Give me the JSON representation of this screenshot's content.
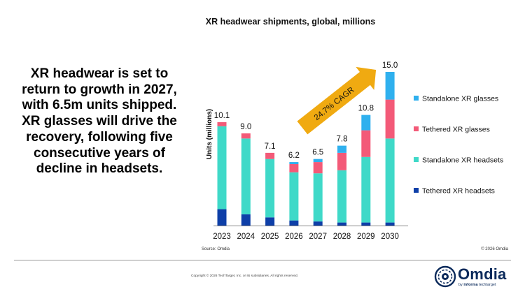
{
  "headline": "XR headwear is set to return to growth in 2027, with 6.5m units shipped. XR glasses will drive the recovery, following five consecutive years of decline in headsets.",
  "source": "Source: Omdia",
  "chart_copyright": "© 2026 Omdia",
  "footer_copyright": "Copyright © 2026 TechTarget, Inc. or its subsidiaries. All rights reserved.",
  "logo": {
    "brand": "Omdia",
    "by": "by",
    "parent_bold": "informa",
    "parent_rest": " techtarget"
  },
  "chart_data": {
    "type": "bar",
    "stacked": true,
    "title": "XR headwear shipments, global, millions",
    "ylabel": "Units (millions)",
    "xlabel": "",
    "ylim": [
      0,
      15
    ],
    "grid": false,
    "legend_position": "right",
    "categories": [
      "2023",
      "2024",
      "2025",
      "2026",
      "2027",
      "2028",
      "2029",
      "2030"
    ],
    "totals_labels": [
      "10.1",
      "9.0",
      "7.1",
      "6.2",
      "6.5",
      "7.8",
      "10.8",
      "15.0"
    ],
    "series": [
      {
        "name": "Tethered XR headsets",
        "color": "#0e3fa8",
        "values": [
          1.6,
          1.1,
          0.8,
          0.5,
          0.4,
          0.3,
          0.3,
          0.3
        ]
      },
      {
        "name": "Standalone XR headsets",
        "color": "#3fd9c8",
        "values": [
          8.1,
          7.4,
          5.7,
          4.7,
          4.7,
          5.1,
          6.4,
          8.2
        ]
      },
      {
        "name": "Tethered XR glasses",
        "color": "#f35a78",
        "values": [
          0.4,
          0.5,
          0.6,
          0.8,
          1.1,
          1.7,
          2.6,
          3.8
        ]
      },
      {
        "name": "Standalone XR glasses",
        "color": "#2fb0ee",
        "values": [
          0.0,
          0.0,
          0.0,
          0.2,
          0.3,
          0.7,
          1.5,
          2.7
        ]
      }
    ],
    "legend_order": [
      "Standalone XR glasses",
      "Tethered XR glasses",
      "Standalone XR headsets",
      "Tethered XR headsets"
    ],
    "annotation": {
      "text": "24.7% CAGR",
      "from_category": "2026",
      "to_category": "2030",
      "color": "#f0aa11"
    }
  }
}
